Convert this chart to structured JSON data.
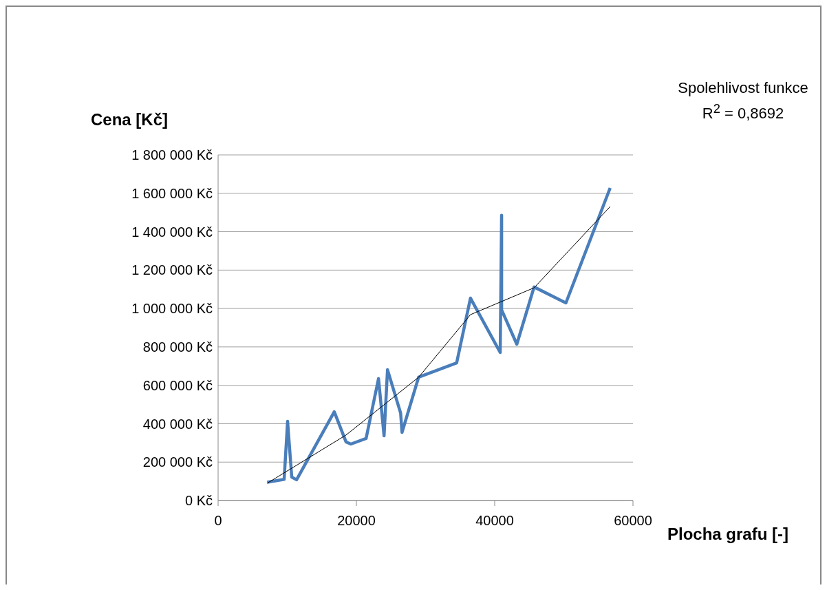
{
  "chart_data": {
    "type": "line",
    "xlabel": "Plocha grafu [-]",
    "ylabel": "Cena  [Kč]",
    "annotations": [
      "Spolehlivost funkce",
      "R$^{2}$ = 0,8692"
    ],
    "series": [
      {
        "color": "#4a7ebb",
        "x": [
          7100,
          9550,
          10050,
          10650,
          11350,
          16800,
          18500,
          19200,
          21400,
          23200,
          24000,
          24500,
          26400,
          26600,
          29000,
          34500,
          36500,
          40800,
          41000,
          41000,
          43200,
          45700,
          50300,
          56700
        ],
        "values": [
          95000,
          110000,
          412000,
          122000,
          108000,
          462000,
          305000,
          294000,
          323000,
          635000,
          337000,
          681000,
          455000,
          355000,
          642000,
          717000,
          1054000,
          771000,
          1485000,
          993000,
          814000,
          1112000,
          1029000,
          1628000
        ]
      },
      {
        "color": "#000000",
        "x": [
          7100,
          18500,
          29000,
          36500,
          45700,
          56700
        ],
        "values": [
          90000,
          341000,
          642000,
          968000,
          1108000,
          1531000
        ]
      }
    ],
    "xlim": [
      0,
      60000
    ],
    "xticks": [
      0,
      20000,
      40000,
      60000
    ],
    "ylim": [
      0,
      1800000
    ],
    "yticks": [
      {
        "value": 0,
        "label": "0 Kč"
      },
      {
        "value": 200000,
        "label": "200 000 Kč"
      },
      {
        "value": 400000,
        "label": "400 000 Kč"
      },
      {
        "value": 600000,
        "label": "600 000 Kč"
      },
      {
        "value": 800000,
        "label": "800 000 Kč"
      },
      {
        "value": 1000000,
        "label": "1 000 000 Kč"
      },
      {
        "value": 1200000,
        "label": "1 200 000 Kč"
      },
      {
        "value": 1400000,
        "label": "1 400 000 Kč"
      },
      {
        "value": 1600000,
        "label": "1 600 000 Kč"
      },
      {
        "value": 1800000,
        "label": "1 800 000 Kč"
      }
    ],
    "grid": "y",
    "marker": "none",
    "line_style": "solid"
  }
}
